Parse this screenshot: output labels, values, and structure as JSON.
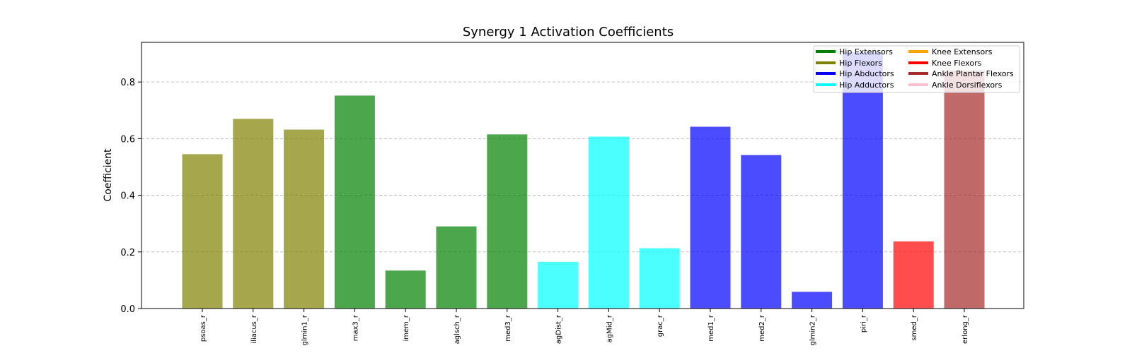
{
  "chart_data": {
    "type": "bar",
    "title": "Synergy 1 Activation Coefficients",
    "xlabel": "",
    "ylabel": "Coefficient",
    "ylim": [
      0,
      0.94
    ],
    "yticks": [
      "0.0",
      "0.2",
      "0.4",
      "0.6",
      "0.8"
    ],
    "grid": "y-dashed",
    "legend_position": "top-right",
    "categories": [
      "psoas_r",
      "iliacus_r",
      "glmin1_r",
      "max3_r",
      "imem_r",
      "aglsch_r",
      "med3_r",
      "agDist_r",
      "agMid_r",
      "grac_r",
      "med1_r",
      "med2_r",
      "glmin2_r",
      "piri_r",
      "smed_r",
      "erlong_r"
    ],
    "values": [
      0.545,
      0.67,
      0.632,
      0.752,
      0.134,
      0.29,
      0.615,
      0.165,
      0.607,
      0.213,
      0.642,
      0.542,
      0.059,
      0.905,
      0.237,
      0.84
    ],
    "groups": [
      "Hip Flexors",
      "Hip Flexors",
      "Hip Flexors",
      "Hip Extensors",
      "Hip Extensors",
      "Hip Extensors",
      "Hip Extensors",
      "Hip Adductors",
      "Hip Adductors",
      "Hip Adductors",
      "Hip Abductors",
      "Hip Abductors",
      "Hip Abductors",
      "Hip Abductors",
      "Knee Flexors",
      "Ankle Plantar Flexors"
    ],
    "legend": [
      {
        "name": "Hip Extensors",
        "color": "#008000"
      },
      {
        "name": "Hip Flexors",
        "color": "#808000"
      },
      {
        "name": "Hip Abductors",
        "color": "#0000ff"
      },
      {
        "name": "Hip Adductors",
        "color": "#00ffff"
      },
      {
        "name": "Knee Extensors",
        "color": "#ffa500"
      },
      {
        "name": "Knee Flexors",
        "color": "#ff0000"
      },
      {
        "name": "Ankle Plantar Flexors",
        "color": "#a52a2a"
      },
      {
        "name": "Ankle Dorsiflexors",
        "color": "#ffc0cb"
      }
    ],
    "bar_opacity": 0.7
  }
}
